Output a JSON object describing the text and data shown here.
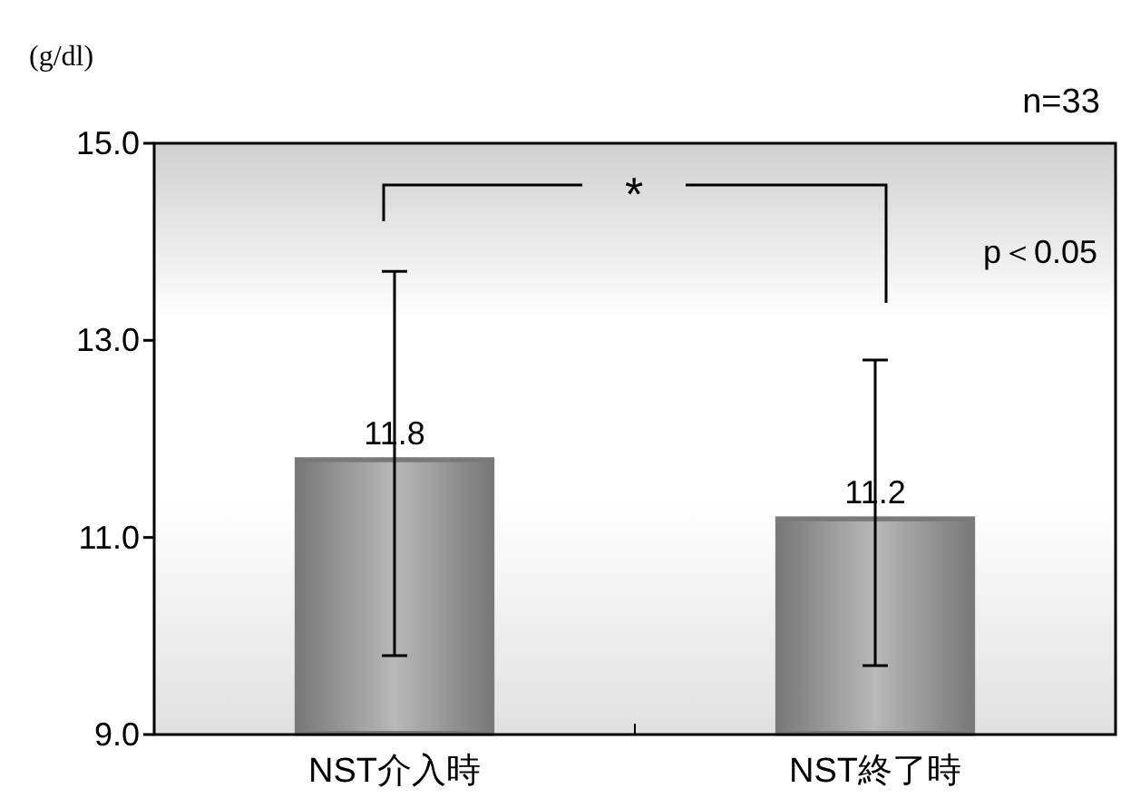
{
  "chart_data": {
    "type": "bar",
    "ylabel": "(g/dl)",
    "categories": [
      "NST介入時",
      "NST終了時"
    ],
    "values": [
      11.8,
      11.2
    ],
    "errors": [
      [
        9.8,
        13.7
      ],
      [
        9.7,
        12.8
      ]
    ],
    "color": "#7a7a7a",
    "data_labels": true,
    "ylim": [
      9.0,
      15.0
    ],
    "yticks": [
      {
        "value": 9,
        "label": "9.0"
      },
      {
        "value": 11,
        "label": "11.0"
      },
      {
        "value": 13,
        "label": "13.0"
      },
      {
        "value": 15,
        "label": "15.0"
      }
    ],
    "grid": false,
    "annotations": [
      "n=33",
      "*",
      "p＜0.05"
    ]
  }
}
